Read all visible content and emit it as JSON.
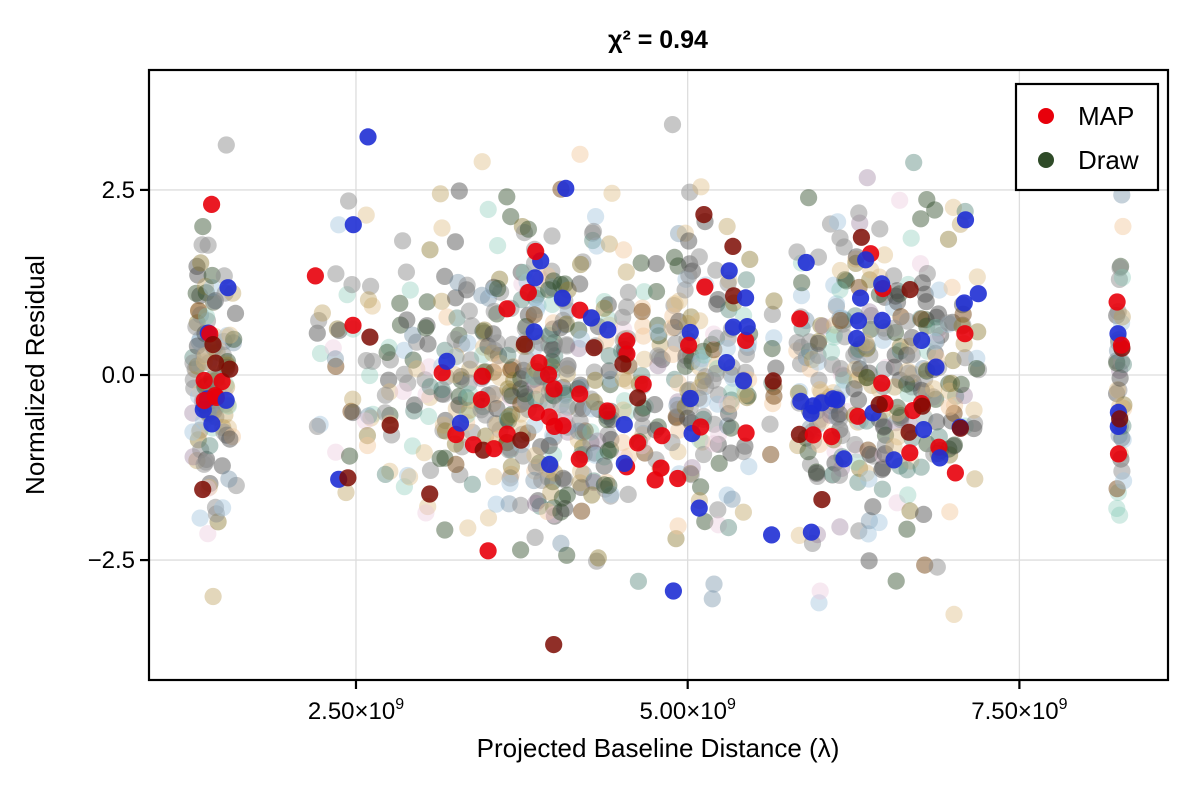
{
  "chart_data": {
    "type": "scatter",
    "title": "χ² = 0.94",
    "xlabel": "Projected Baseline Distance (λ)",
    "ylabel": "Normalized Residual",
    "x_unit": "1e9",
    "xlim_e9": [
      0.94,
      8.62
    ],
    "ylim": [
      -4.12,
      4.12
    ],
    "grid": true,
    "grid_color": "#dddddd",
    "frame_color": "#000000",
    "xticks": [
      {
        "value_e9": 2.5,
        "mantissa": "2.50×10",
        "exponent": "9"
      },
      {
        "value_e9": 5.0,
        "mantissa": "5.00×10",
        "exponent": "9"
      },
      {
        "value_e9": 7.5,
        "mantissa": "7.50×10",
        "exponent": "9"
      }
    ],
    "yticks": [
      {
        "value": 2.5,
        "label": "2.5"
      },
      {
        "value": 0.0,
        "label": "0.0"
      },
      {
        "value": -2.5,
        "label": "−2.5"
      }
    ],
    "legend": {
      "position": "upper right",
      "items": [
        {
          "label": "MAP",
          "color": "#e8000b"
        },
        {
          "label": "Draw",
          "color": "#2f4b28"
        }
      ]
    },
    "marker_radius_px": 8.6,
    "seed": 7,
    "x_jitter_e9": 0.03,
    "y_clip": 3.85,
    "palette": [
      {
        "color": "#8f8f8f",
        "alpha": 0.5,
        "weight": 20
      },
      {
        "color": "#474747",
        "alpha": 0.45,
        "weight": 12
      },
      {
        "color": "#2f4b28",
        "alpha": 0.45,
        "weight": 10
      },
      {
        "color": "#477a6e",
        "alpha": 0.4,
        "weight": 6
      },
      {
        "color": "#7fc7b2",
        "alpha": 0.35,
        "weight": 5
      },
      {
        "color": "#ddb97e",
        "alpha": 0.4,
        "weight": 7
      },
      {
        "color": "#f2c89c",
        "alpha": 0.45,
        "weight": 4
      },
      {
        "color": "#a3c6dd",
        "alpha": 0.45,
        "weight": 6
      },
      {
        "color": "#6d8ba3",
        "alpha": 0.4,
        "weight": 3
      },
      {
        "color": "#8f7d35",
        "alpha": 0.45,
        "weight": 6
      },
      {
        "color": "#b99c55",
        "alpha": 0.4,
        "weight": 4
      },
      {
        "color": "#ecc9dc",
        "alpha": 0.4,
        "weight": 3
      },
      {
        "color": "#8f6f92",
        "alpha": 0.35,
        "weight": 2
      },
      {
        "color": "#7a4a18",
        "alpha": 0.5,
        "weight": 3
      },
      {
        "color": "#e8000b",
        "alpha": 0.9,
        "weight": 6.5,
        "top": true
      },
      {
        "color": "#1f2fd4",
        "alpha": 0.9,
        "weight": 5.5,
        "top": true
      },
      {
        "color": "#7c0a02",
        "alpha": 0.85,
        "weight": 2.5,
        "top": true
      }
    ],
    "clusters": [
      [
        1.3,
        32,
        0.95
      ],
      [
        1.37,
        40,
        0.95
      ],
      [
        1.44,
        36,
        0.95
      ],
      [
        1.51,
        28,
        0.95
      ],
      [
        1.57,
        10,
        0.9
      ],
      [
        2.22,
        7,
        0.9
      ],
      [
        2.35,
        9,
        1.0
      ],
      [
        2.45,
        12,
        1.0
      ],
      [
        2.6,
        15,
        1.0
      ],
      [
        2.74,
        13,
        1.0
      ],
      [
        2.86,
        11,
        1.0
      ],
      [
        2.93,
        9,
        1.0
      ],
      [
        3.04,
        16,
        1.0
      ],
      [
        3.16,
        20,
        1.0
      ],
      [
        3.27,
        24,
        1.0
      ],
      [
        3.36,
        18,
        1.0
      ],
      [
        3.47,
        26,
        1.05
      ],
      [
        3.56,
        28,
        1.05
      ],
      [
        3.66,
        32,
        1.05
      ],
      [
        3.77,
        38,
        1.05
      ],
      [
        3.87,
        42,
        1.05
      ],
      [
        3.97,
        48,
        1.15
      ],
      [
        4.07,
        38,
        1.15
      ],
      [
        4.2,
        28,
        1.05
      ],
      [
        4.3,
        26,
        1.0
      ],
      [
        4.4,
        32,
        1.05
      ],
      [
        4.53,
        28,
        1.05
      ],
      [
        4.65,
        24,
        1.0
      ],
      [
        4.78,
        18,
        1.0
      ],
      [
        4.91,
        28,
        1.0
      ],
      [
        5.01,
        32,
        1.05
      ],
      [
        5.11,
        28,
        1.0
      ],
      [
        5.21,
        22,
        1.0
      ],
      [
        5.32,
        28,
        1.0
      ],
      [
        5.44,
        24,
        1.0
      ],
      [
        5.64,
        13,
        0.95
      ],
      [
        5.85,
        18,
        1.0
      ],
      [
        5.92,
        20,
        1.0
      ],
      [
        6.0,
        24,
        1.0
      ],
      [
        6.1,
        28,
        1.05
      ],
      [
        6.17,
        28,
        1.05
      ],
      [
        6.28,
        32,
        1.05
      ],
      [
        6.37,
        28,
        1.0
      ],
      [
        6.47,
        32,
        1.05
      ],
      [
        6.58,
        28,
        1.0
      ],
      [
        6.68,
        26,
        1.0
      ],
      [
        6.78,
        28,
        1.05
      ],
      [
        6.88,
        26,
        1.0
      ],
      [
        6.99,
        22,
        1.1
      ],
      [
        7.08,
        16,
        1.0
      ],
      [
        7.18,
        10,
        0.95
      ],
      [
        8.26,
        48,
        0.95
      ]
    ]
  }
}
